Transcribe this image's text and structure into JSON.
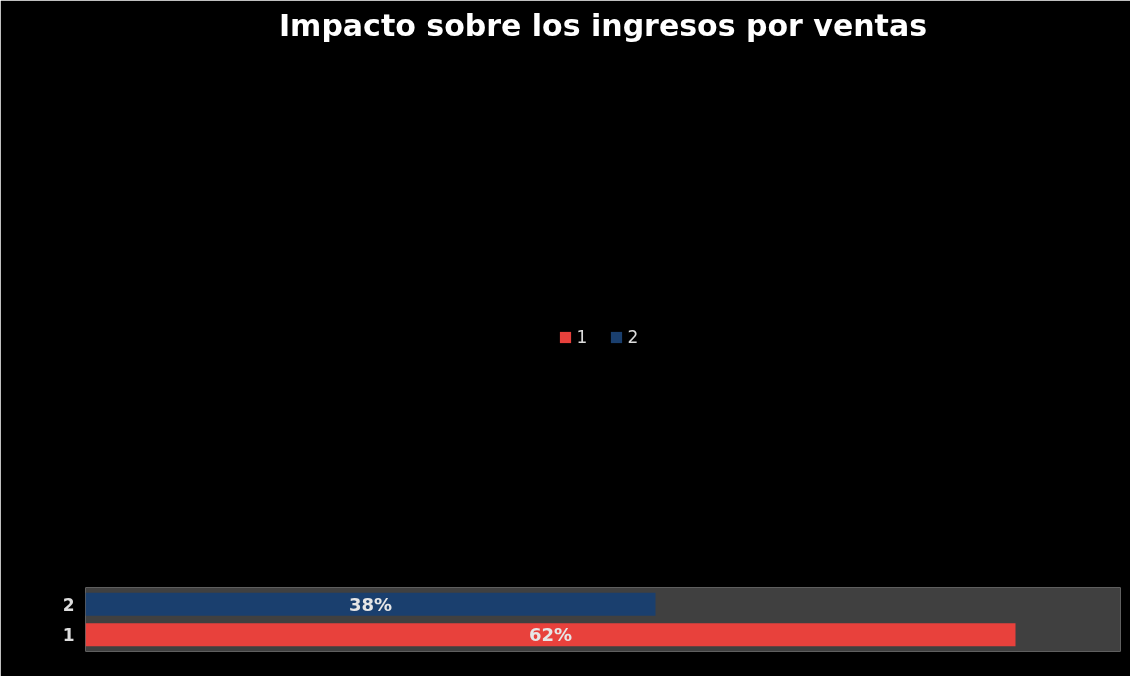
{
  "chart_data": {
    "type": "bar",
    "title": "Impacto sobre los ingresos por ventas",
    "orientation": "horizontal",
    "stacked": true,
    "categories": [
      "2",
      "1"
    ],
    "series": [
      {
        "name": "1",
        "color": "#e8413c",
        "values": [
          null,
          62
        ],
        "value_labels": [
          null,
          "62%"
        ]
      },
      {
        "name": "2",
        "color": "#1a3f6e",
        "values": [
          38,
          null
        ],
        "value_labels": [
          "38%",
          null
        ]
      }
    ],
    "xlim": [
      0,
      69
    ],
    "tick_labels": "y",
    "grid": false,
    "legend": "top"
  }
}
